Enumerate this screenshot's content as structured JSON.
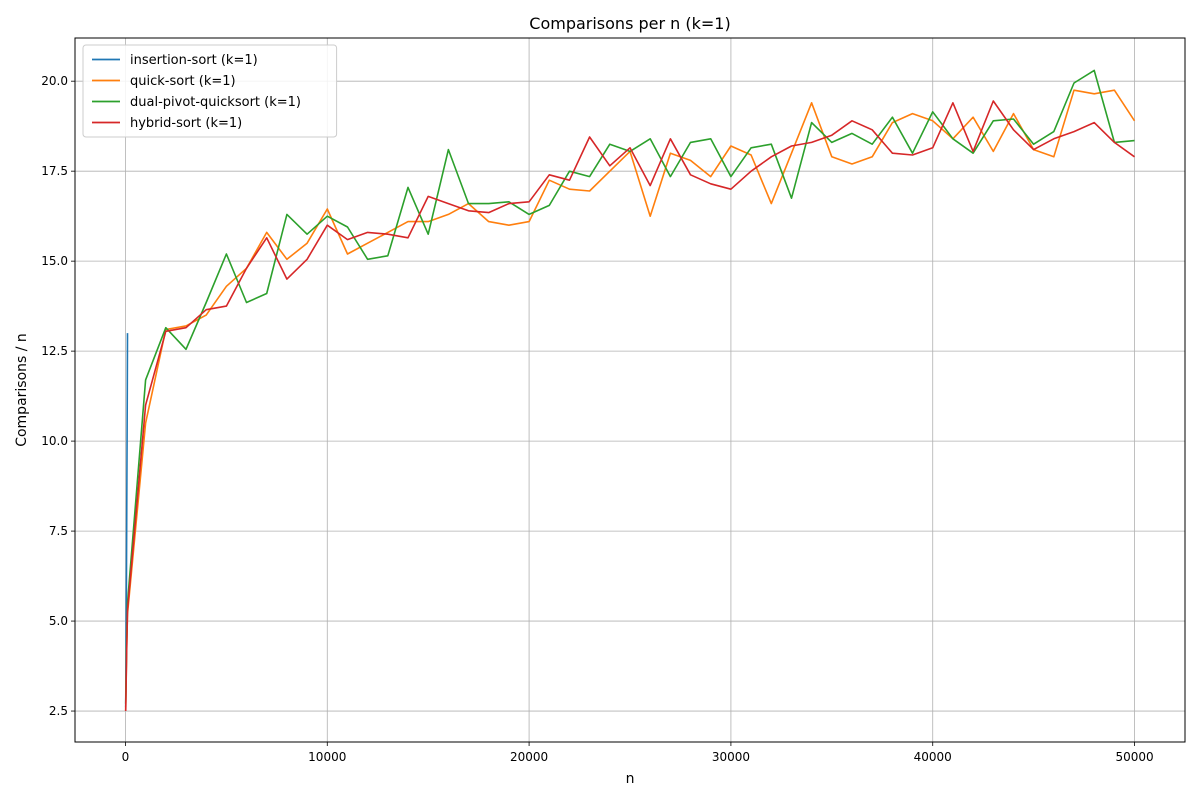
{
  "chart_data": {
    "type": "line",
    "title": "Comparisons per n (k=1)",
    "xlabel": "n",
    "ylabel": "Comparisons / n",
    "xlim": [
      -2500,
      52500
    ],
    "ylim": [
      1.64,
      21.2
    ],
    "xticks": [
      0,
      10000,
      20000,
      30000,
      40000,
      50000
    ],
    "xtick_labels": [
      "0",
      "10000",
      "20000",
      "30000",
      "40000",
      "50000"
    ],
    "yticks": [
      2.5,
      5.0,
      7.5,
      10.0,
      12.5,
      15.0,
      17.5,
      20.0
    ],
    "ytick_labels": [
      "2.5",
      "5.0",
      "7.5",
      "10.0",
      "12.5",
      "15.0",
      "17.5",
      "20.0"
    ],
    "grid": true,
    "legend_position": "top-left",
    "series": [
      {
        "name": "insertion-sort (k=1)",
        "color": "#1f77b4",
        "x": [
          10,
          20,
          30,
          40,
          50,
          60,
          70,
          80,
          90,
          100
        ],
        "y": [
          2.6,
          3.5,
          4.4,
          5.6,
          6.5,
          7.7,
          9.0,
          10.2,
          11.5,
          13.0
        ]
      },
      {
        "name": "quick-sort (k=1)",
        "color": "#ff7f0e",
        "x": [
          10,
          50,
          100,
          1000,
          2000,
          3000,
          4000,
          5000,
          6000,
          7000,
          8000,
          9000,
          10000,
          11000,
          12000,
          13000,
          14000,
          15000,
          16000,
          17000,
          18000,
          19000,
          20000,
          21000,
          22000,
          23000,
          24000,
          25000,
          26000,
          27000,
          28000,
          29000,
          30000,
          31000,
          32000,
          33000,
          34000,
          35000,
          36000,
          37000,
          38000,
          39000,
          40000,
          41000,
          42000,
          43000,
          44000,
          45000,
          46000,
          47000,
          48000,
          49000,
          50000
        ],
        "y": [
          2.5,
          4.0,
          5.2,
          10.5,
          13.1,
          13.2,
          13.5,
          14.3,
          14.8,
          15.8,
          15.05,
          15.5,
          16.45,
          15.2,
          15.5,
          15.8,
          16.1,
          16.1,
          16.3,
          16.6,
          16.1,
          16.0,
          16.1,
          17.25,
          17.0,
          16.95,
          17.5,
          18.05,
          16.25,
          18.0,
          17.8,
          17.35,
          18.2,
          17.95,
          16.6,
          18.0,
          19.4,
          17.9,
          17.7,
          17.9,
          18.85,
          19.1,
          18.9,
          18.4,
          19.0,
          18.05,
          19.1,
          18.1,
          17.9,
          19.75,
          19.65,
          19.75,
          18.9
        ]
      },
      {
        "name": "dual-pivot-quicksort (k=1)",
        "color": "#2ca02c",
        "x": [
          10,
          50,
          100,
          1000,
          2000,
          3000,
          4000,
          5000,
          6000,
          7000,
          8000,
          9000,
          10000,
          11000,
          12000,
          13000,
          14000,
          15000,
          16000,
          17000,
          18000,
          19000,
          20000,
          21000,
          22000,
          23000,
          24000,
          25000,
          26000,
          27000,
          28000,
          29000,
          30000,
          31000,
          32000,
          33000,
          34000,
          35000,
          36000,
          37000,
          38000,
          39000,
          40000,
          41000,
          42000,
          43000,
          44000,
          45000,
          46000,
          47000,
          48000,
          49000,
          50000
        ],
        "y": [
          2.7,
          4.2,
          5.5,
          11.7,
          13.15,
          12.55,
          13.85,
          15.2,
          13.85,
          14.1,
          16.3,
          15.75,
          16.25,
          15.95,
          15.05,
          15.15,
          17.05,
          15.75,
          18.1,
          16.6,
          16.6,
          16.65,
          16.3,
          16.55,
          17.5,
          17.35,
          18.25,
          18.05,
          18.4,
          17.35,
          18.3,
          18.4,
          17.35,
          18.15,
          18.25,
          16.75,
          18.85,
          18.3,
          18.55,
          18.25,
          19.0,
          18.0,
          19.15,
          18.4,
          18.0,
          18.9,
          18.95,
          18.25,
          18.6,
          19.95,
          20.3,
          18.3,
          18.35
        ]
      },
      {
        "name": "hybrid-sort (k=1)",
        "color": "#d62728",
        "x": [
          10,
          50,
          100,
          1000,
          2000,
          3000,
          4000,
          5000,
          6000,
          7000,
          8000,
          9000,
          10000,
          11000,
          12000,
          13000,
          14000,
          15000,
          16000,
          17000,
          18000,
          19000,
          20000,
          21000,
          22000,
          23000,
          24000,
          25000,
          26000,
          27000,
          28000,
          29000,
          30000,
          31000,
          32000,
          33000,
          34000,
          35000,
          36000,
          37000,
          38000,
          39000,
          40000,
          41000,
          42000,
          43000,
          44000,
          45000,
          46000,
          47000,
          48000,
          49000,
          50000
        ],
        "y": [
          2.5,
          3.9,
          5.3,
          11.0,
          13.05,
          13.15,
          13.65,
          13.75,
          14.8,
          15.65,
          14.5,
          15.05,
          16.0,
          15.6,
          15.8,
          15.75,
          15.65,
          16.8,
          16.6,
          16.4,
          16.35,
          16.6,
          16.65,
          17.4,
          17.25,
          18.45,
          17.65,
          18.15,
          17.1,
          18.4,
          17.4,
          17.15,
          17.0,
          17.5,
          17.9,
          18.2,
          18.3,
          18.5,
          18.9,
          18.65,
          18.0,
          17.95,
          18.15,
          19.4,
          18.05,
          19.45,
          18.65,
          18.1,
          18.4,
          18.6,
          18.85,
          18.3,
          17.9
        ]
      }
    ]
  }
}
